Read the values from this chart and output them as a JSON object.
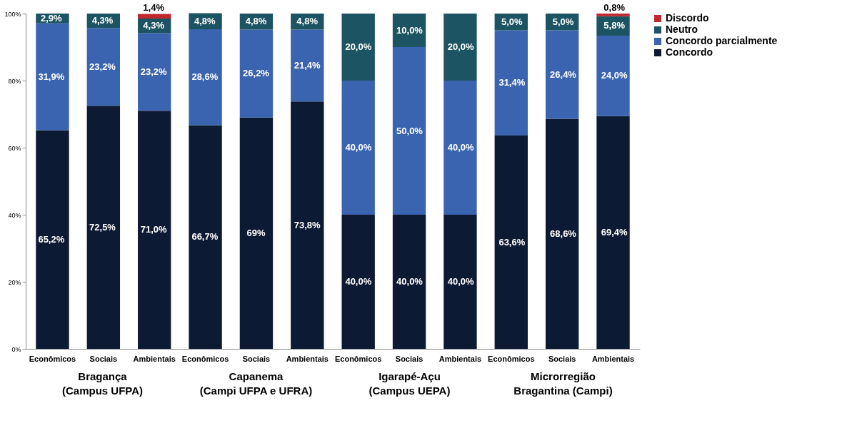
{
  "chart_data": {
    "type": "bar",
    "stacked": true,
    "categories": [
      "Econômicos",
      "Sociais",
      "Ambientais",
      "Econômicos",
      "Sociais",
      "Ambientais",
      "Econômicos",
      "Sociais",
      "Ambientais",
      "Econômicos",
      "Sociais",
      "Ambientais"
    ],
    "series": [
      {
        "name": "Concordo",
        "color": "#0d1a33",
        "values": [
          65.2,
          72.5,
          71.0,
          66.7,
          69,
          73.8,
          40.0,
          40.0,
          40.0,
          63.6,
          68.6,
          69.4
        ],
        "value_labels": [
          "65,2%",
          "72,5%",
          "71,0%",
          "66,7%",
          "69%",
          "73,8%",
          "40,0%",
          "40,0%",
          "40,0%",
          "63,6%",
          "68,6%",
          "69,4%"
        ]
      },
      {
        "name": "Concordo parcialmente",
        "color": "#3a64b0",
        "values": [
          31.9,
          23.2,
          23.2,
          28.6,
          26.2,
          21.4,
          40.0,
          50.0,
          40.0,
          31.4,
          26.4,
          24.0
        ],
        "value_labels": [
          "31,9%",
          "23,2%",
          "23,2%",
          "28,6%",
          "26,2%",
          "21,4%",
          "40,0%",
          "50,0%",
          "40,0%",
          "31,4%",
          "26,4%",
          "24,0%"
        ]
      },
      {
        "name": "Neutro",
        "color": "#1d5463",
        "values": [
          2.9,
          4.3,
          4.3,
          4.8,
          4.8,
          4.8,
          20.0,
          10.0,
          20.0,
          5.0,
          5.0,
          5.8
        ],
        "value_labels": [
          "2,9%",
          "4,3%",
          "4,3%",
          "4,8%",
          "4,8%",
          "4,8%",
          "20,0%",
          "10,0%",
          "20,0%",
          "5,0%",
          "5,0%",
          "5,8%"
        ]
      },
      {
        "name": "Discordo",
        "color": "#c0282d",
        "values": [
          null,
          null,
          1.4,
          null,
          null,
          null,
          null,
          null,
          null,
          null,
          null,
          0.8
        ],
        "value_labels": [
          null,
          null,
          "1,4%",
          null,
          null,
          null,
          null,
          null,
          null,
          null,
          null,
          "0,8%"
        ]
      }
    ],
    "ylim": [
      0,
      100
    ],
    "yticks": [
      {
        "value": 0,
        "label": "0%"
      },
      {
        "value": 20,
        "label": "20%"
      },
      {
        "value": 40,
        "label": "40%"
      },
      {
        "value": 60,
        "label": "60%"
      },
      {
        "value": 80,
        "label": "80%"
      },
      {
        "value": 100,
        "label": "100%"
      }
    ],
    "annotations": [
      "Bragança\n(Campus UFPA)",
      "Capanema\n(Campi UFPA e UFRA)",
      "Igarapé-Açu\n(Campus UEPA)",
      "Microrregião\nBragantina (Campi)"
    ],
    "legend": "right",
    "grid": false
  }
}
